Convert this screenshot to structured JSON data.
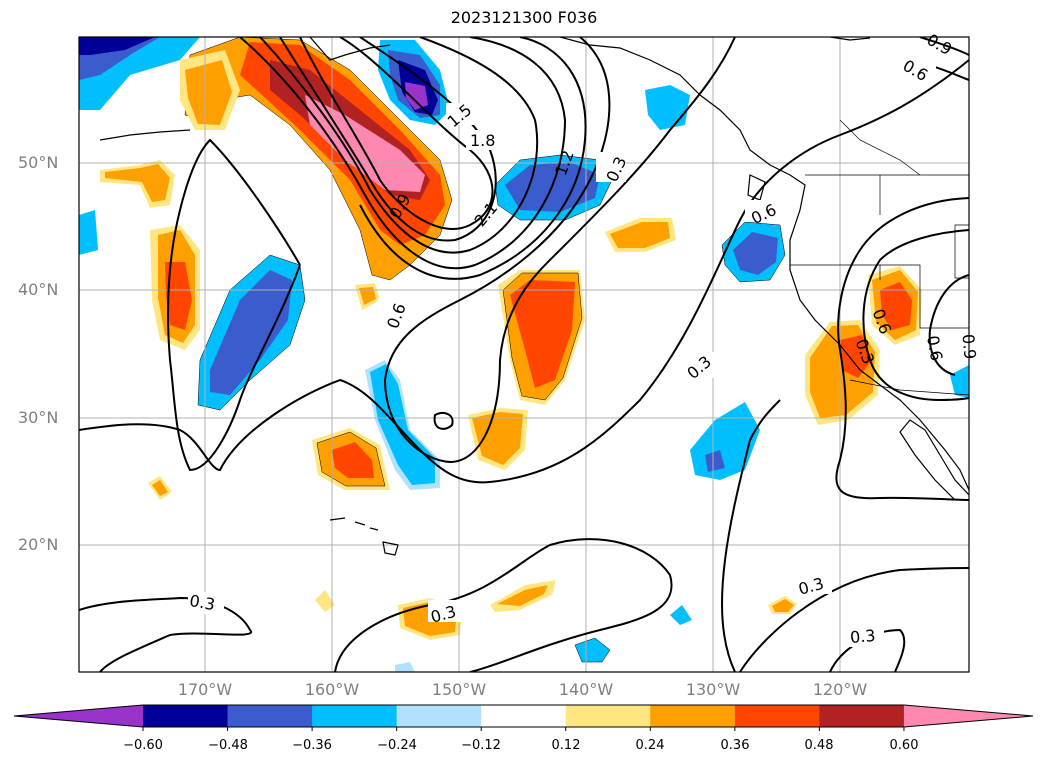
{
  "title": "2023121300 F036",
  "lat_labels": [
    "50°N",
    "40°N",
    "30°N",
    "20°N"
  ],
  "lon_labels": [
    "170°W",
    "160°W",
    "150°W",
    "140°W",
    "130°W",
    "120°W"
  ],
  "contour_labels": [
    "0.9",
    "0.6",
    "1.5",
    "1.8",
    "2.1",
    "1.2",
    "0.3",
    "0.6",
    "0.9",
    "0.6",
    "0.6",
    "0.3",
    "0.3",
    "0.6",
    "0.9",
    "0.3",
    "0.3",
    "0.3",
    "0.3"
  ],
  "colorbar": {
    "ticks": [
      "−0.60",
      "−0.48",
      "−0.36",
      "−0.24",
      "−0.12",
      "0.12",
      "0.24",
      "0.36",
      "0.48",
      "0.60"
    ],
    "colors": [
      "#9933cc",
      "#000099",
      "#3a5ccc",
      "#00bfff",
      "#b0e2ff",
      "#ffffff",
      "#ffe680",
      "#ff9f00",
      "#ff4500",
      "#b22222",
      "#ff88b0"
    ]
  },
  "colors": {
    "contour": "#000000",
    "grid": "#b0b0b0",
    "coast": "#000000"
  }
}
